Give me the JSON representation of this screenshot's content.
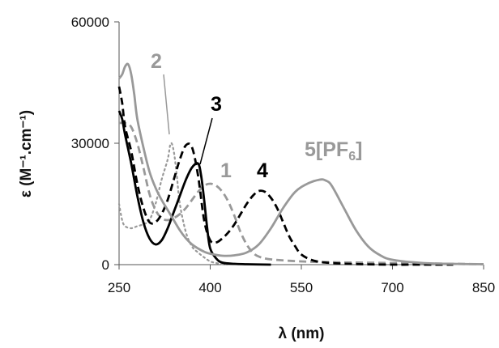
{
  "chart_data": {
    "type": "line",
    "title": "",
    "xlabel": "λ (nm)",
    "ylabel": "ε (M⁻¹.cm⁻¹)",
    "xlim": [
      250,
      850
    ],
    "ylim": [
      0,
      60000
    ],
    "xticks": [
      "250",
      "400",
      "550",
      "700",
      "850"
    ],
    "yticks": [
      "0",
      "30000",
      "60000"
    ],
    "grid": false,
    "legend": "none",
    "series": [
      {
        "name": "1",
        "color": "#999999",
        "style": "dashed",
        "x": [
          250,
          260,
          270,
          280,
          290,
          300,
          310,
          320,
          330,
          340,
          350,
          360,
          370,
          380,
          390,
          400,
          410,
          420,
          430,
          440,
          450,
          460,
          470,
          480,
          500,
          550,
          600,
          650,
          700,
          750,
          800,
          850
        ],
        "y": [
          35000,
          35000,
          34000,
          30000,
          24000,
          17500,
          13500,
          11500,
          11000,
          11500,
          12500,
          14000,
          16000,
          18000,
          19500,
          20000,
          19500,
          18000,
          15500,
          12000,
          8000,
          5000,
          3000,
          2000,
          1300,
          800,
          600,
          500,
          400,
          300,
          200,
          100
        ]
      },
      {
        "name": "2",
        "color": "#999999",
        "style": "dotted",
        "x": [
          250,
          255,
          260,
          270,
          280,
          290,
          300,
          310,
          320,
          330,
          335,
          340,
          345,
          350,
          360,
          370,
          380,
          390,
          400,
          410,
          420,
          430
        ],
        "y": [
          15000,
          11000,
          9500,
          9000,
          9500,
          10000,
          11000,
          15000,
          21000,
          26000,
          30000,
          28000,
          22000,
          15000,
          8000,
          4500,
          3000,
          1800,
          800,
          400,
          100,
          0
        ]
      },
      {
        "name": "3",
        "color": "#000000",
        "style": "solid",
        "x": [
          250,
          255,
          260,
          270,
          280,
          290,
          300,
          310,
          320,
          330,
          340,
          350,
          360,
          370,
          380,
          385,
          390,
          395,
          400,
          410,
          420,
          440,
          460,
          500
        ],
        "y": [
          38000,
          36000,
          32000,
          25000,
          17000,
          10500,
          6500,
          5000,
          6000,
          9000,
          13000,
          17000,
          21000,
          24000,
          25000,
          22000,
          16000,
          9000,
          4000,
          1500,
          500,
          200,
          100,
          0
        ]
      },
      {
        "name": "4",
        "color": "#000000",
        "style": "dashed",
        "x": [
          250,
          255,
          260,
          270,
          280,
          290,
          300,
          310,
          320,
          330,
          340,
          350,
          360,
          370,
          380,
          390,
          400,
          410,
          420,
          430,
          440,
          450,
          460,
          470,
          480,
          490,
          500,
          510,
          520,
          530,
          540,
          550,
          570,
          600,
          650,
          700,
          750,
          800
        ],
        "y": [
          44000,
          40000,
          34000,
          28000,
          20000,
          14000,
          10500,
          10500,
          12500,
          16000,
          21000,
          26000,
          29500,
          29000,
          22000,
          11000,
          6000,
          5500,
          6500,
          8000,
          10000,
          12500,
          15000,
          17000,
          18200,
          18000,
          16500,
          14000,
          10500,
          7000,
          4500,
          2500,
          1000,
          400,
          100,
          0,
          0,
          0
        ]
      },
      {
        "name": "5[PF6]",
        "color": "#999999",
        "style": "solid",
        "x": [
          250,
          255,
          260,
          265,
          270,
          275,
          280,
          290,
          300,
          310,
          320,
          330,
          340,
          350,
          360,
          370,
          380,
          390,
          400,
          420,
          440,
          460,
          480,
          500,
          520,
          540,
          560,
          580,
          590,
          600,
          620,
          640,
          660,
          680,
          700,
          750,
          800,
          850
        ],
        "y": [
          46000,
          47000,
          49000,
          49500,
          47000,
          42000,
          36000,
          29000,
          23000,
          19000,
          16000,
          13500,
          11000,
          8500,
          6500,
          5000,
          4000,
          3200,
          2700,
          2200,
          2300,
          3000,
          5000,
          9000,
          14000,
          18000,
          20000,
          21000,
          20800,
          19500,
          14000,
          8500,
          4500,
          2300,
          1200,
          400,
          200,
          100
        ]
      }
    ],
    "annotations": [
      {
        "series": "2",
        "text": "2",
        "color": "#999999"
      },
      {
        "series": "3",
        "text": "3",
        "color": "#000000"
      },
      {
        "series": "1",
        "text": "1",
        "color": "#999999"
      },
      {
        "series": "4",
        "text": "4",
        "color": "#000000"
      },
      {
        "series": "5[PF6]",
        "text_main": "5[PF",
        "text_sub": "6",
        "text_end": "]",
        "color": "#999999"
      }
    ]
  }
}
